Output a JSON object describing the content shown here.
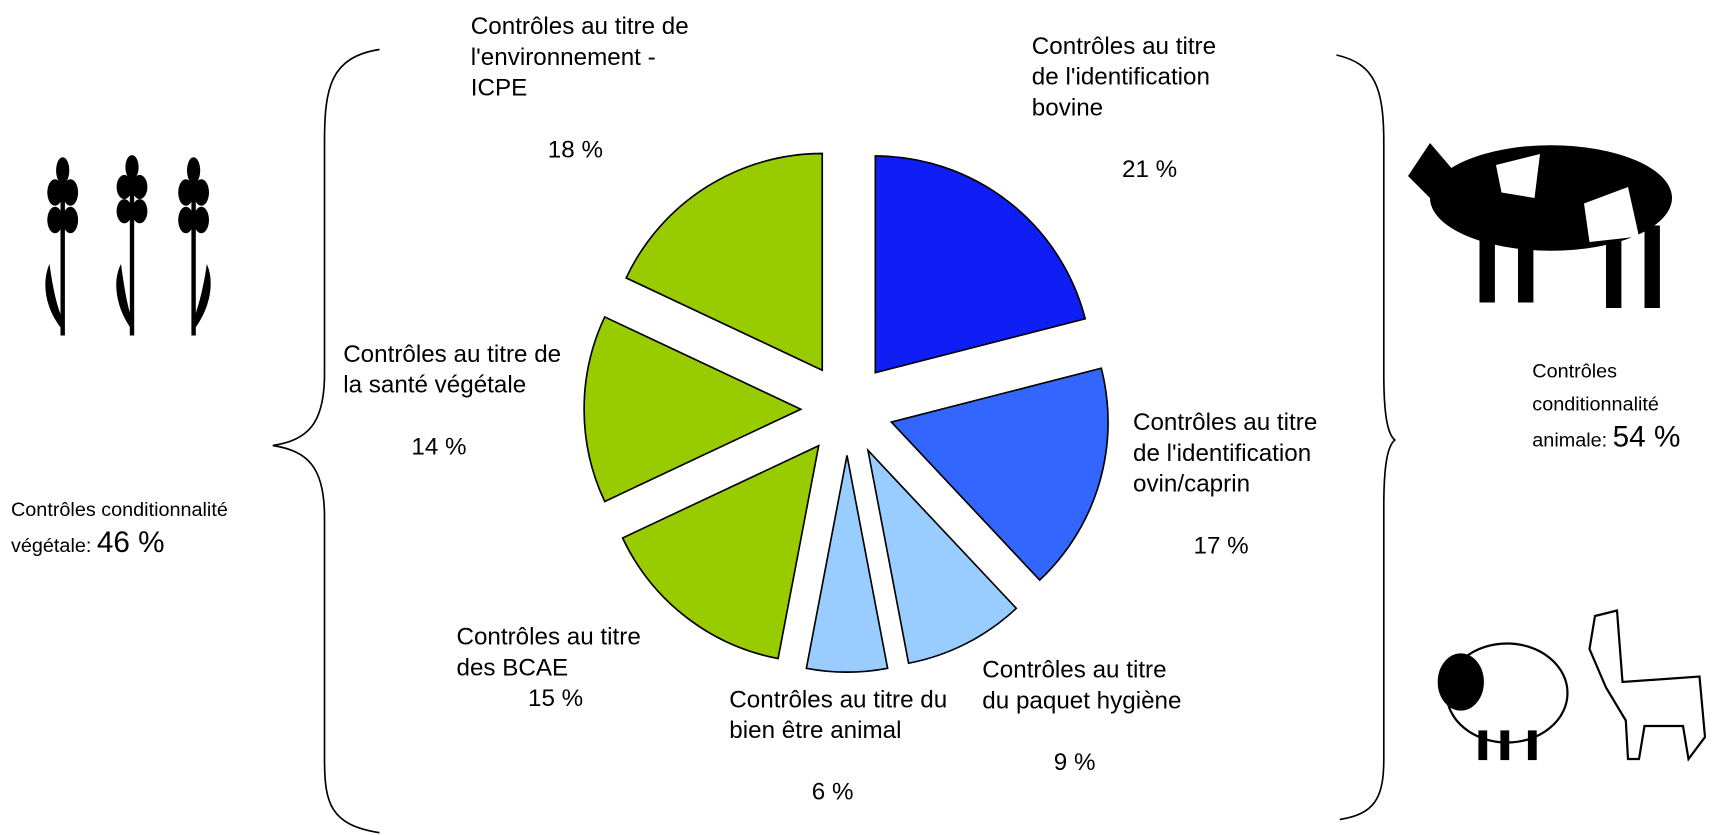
{
  "chart_data": {
    "type": "pie",
    "categories": [
      "Contrôles au titre de l'identification bovine",
      "Contrôles au titre de l'identification ovin/caprin",
      "Contrôles au titre du paquet hygiène",
      "Contrôles au titre du bien être animal",
      "Contrôles au titre des BCAE",
      "Contrôles au titre de la santé végétale",
      "Contrôles au titre de l'environnement -ICPE"
    ],
    "values": [
      21,
      17,
      9,
      6,
      15,
      14,
      18
    ],
    "value_labels": [
      "21 %",
      "17 %",
      "9 %",
      "6 %",
      "15 %",
      "14 %",
      "18 %"
    ],
    "colors": [
      "#0f1ef5",
      "#3366ff",
      "#99ccff",
      "#99ccff",
      "#99cc00",
      "#99cc00",
      "#99cc00"
    ],
    "annotations": [
      {
        "text": "Contrôles conditionnalité végétale:",
        "value_label": "46 %"
      },
      {
        "text": "Contrôles conditionnalité animale:",
        "value_label": "54 %"
      }
    ]
  }
}
